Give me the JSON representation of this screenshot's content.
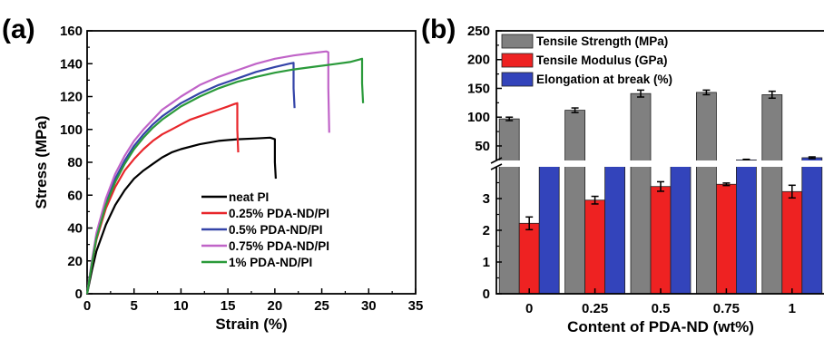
{
  "chart_data": [
    {
      "type": "line",
      "panel_label": "(a)",
      "xlabel": "Strain (%)",
      "ylabel": "Stress (MPa)",
      "xlim": [
        0,
        35
      ],
      "ylim": [
        0,
        160
      ],
      "xticks": [
        "0",
        "5",
        "10",
        "15",
        "20",
        "25",
        "30",
        "35"
      ],
      "yticks": [
        "0",
        "20",
        "40",
        "60",
        "80",
        "100",
        "120",
        "140",
        "160"
      ],
      "legend_position": "lower-right",
      "series": [
        {
          "name": "neat PI",
          "color": "#000000",
          "x": [
            0,
            0.5,
            1,
            2,
            3,
            4,
            5,
            6,
            7,
            8,
            9,
            10,
            12,
            14,
            16,
            18,
            19.5,
            20,
            20,
            20.1
          ],
          "y": [
            0,
            14,
            26,
            42,
            54,
            63,
            70,
            75,
            79,
            83,
            86,
            88,
            91,
            93,
            94,
            94.5,
            95,
            94,
            80,
            70
          ]
        },
        {
          "name": "0.25% PDA-ND/PI",
          "color": "#e8262b",
          "x": [
            0,
            0.5,
            1,
            2,
            3,
            4,
            5,
            6,
            7,
            8,
            9,
            10,
            11,
            12,
            13,
            14,
            15,
            15.7,
            16,
            16,
            16.1
          ],
          "y": [
            0,
            18,
            33,
            52,
            65,
            75,
            82,
            88,
            93,
            97,
            100,
            103,
            106,
            108,
            110,
            112,
            114,
            115.5,
            116,
            100,
            86
          ]
        },
        {
          "name": "0.5%  PDA-ND/PI",
          "color": "#3444a8",
          "x": [
            0,
            0.5,
            1,
            2,
            3,
            4,
            5,
            6,
            7,
            8,
            9,
            10,
            12,
            14,
            16,
            18,
            20,
            21.5,
            22,
            22,
            22.1
          ],
          "y": [
            0,
            19,
            35,
            56,
            70,
            81,
            90,
            97,
            103,
            108,
            112,
            116,
            122,
            127,
            131,
            135,
            138,
            140,
            140.5,
            125,
            113
          ]
        },
        {
          "name": "0.75% PDA-ND/PI",
          "color": "#c064c8",
          "x": [
            0,
            0.5,
            1,
            2,
            3,
            4,
            5,
            6,
            7,
            8,
            9,
            10,
            12,
            14,
            16,
            18,
            20,
            22,
            24,
            25.5,
            25.7,
            25.7,
            25.8
          ],
          "y": [
            0,
            20,
            37,
            58,
            73,
            84,
            93,
            100,
            106,
            112,
            116,
            120,
            127,
            132,
            136,
            140,
            143,
            145,
            146.5,
            147.5,
            147,
            125,
            98
          ]
        },
        {
          "name": "1% PDA-ND/PI",
          "color": "#2a9a3a",
          "x": [
            0,
            0.5,
            1,
            2,
            3,
            4,
            5,
            6,
            7,
            8,
            9,
            10,
            12,
            14,
            16,
            18,
            20,
            22,
            24,
            26,
            28,
            29,
            29.3,
            29.3,
            29.4
          ],
          "y": [
            0,
            18,
            34,
            54,
            68,
            79,
            88,
            95,
            101,
            106,
            110,
            114,
            120,
            125,
            129,
            132,
            134.5,
            136.5,
            138,
            139.5,
            141,
            142.5,
            143,
            128,
            116
          ]
        }
      ]
    },
    {
      "type": "bar",
      "panel_label": "(b)",
      "xlabel": "Content of PDA-ND (wt%)",
      "ylabel": "",
      "categories": [
        "0",
        "0.25",
        "0.5",
        "0.75",
        "1"
      ],
      "broken_axis": true,
      "upper_ylim": [
        20,
        250
      ],
      "upper_yticks": [
        "50",
        "100",
        "150",
        "200",
        "250"
      ],
      "lower_ylim": [
        0,
        4
      ],
      "lower_yticks": [
        "0",
        "1",
        "2",
        "3"
      ],
      "legend_position": "top-left",
      "series": [
        {
          "name": "Tensile Strength (MPa)",
          "color": "#808080",
          "axis": "upper",
          "values": [
            97,
            112,
            141,
            143,
            139
          ],
          "errors": [
            3,
            4,
            6,
            4,
            6
          ]
        },
        {
          "name": "Tensile Modulus (GPa)",
          "color": "#ee2222",
          "axis": "lower",
          "values": [
            2.22,
            2.95,
            3.38,
            3.45,
            3.22
          ],
          "errors": [
            0.2,
            0.12,
            0.15,
            0.04,
            0.2
          ]
        },
        {
          "name": "Elongation at break (%)",
          "color": "#3344bb",
          "axis": "upper",
          "values": [
            20,
            16,
            18,
            25.6,
            29.5
          ],
          "errors": [
            1.5,
            1.2,
            1.5,
            1.2,
            1.5
          ]
        }
      ]
    }
  ]
}
